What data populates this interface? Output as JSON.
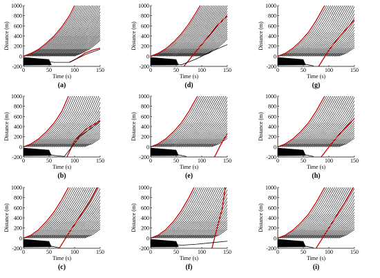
{
  "figure": {
    "panels_order": [
      "a",
      "d",
      "g",
      "b",
      "e",
      "h",
      "c",
      "f",
      "i"
    ]
  },
  "chart_data": [
    {
      "panel": "(a)",
      "type": "line",
      "xlabel": "Time (s)",
      "ylabel": "Distance (m)",
      "xlim": [
        0,
        150
      ],
      "ylim": [
        -200,
        1000
      ],
      "xticks": [
        0,
        50,
        100,
        150
      ],
      "yticks": [
        -200,
        0,
        200,
        400,
        600,
        800,
        1000
      ],
      "series": [
        {
          "color": "#cc0000",
          "values": [
            [
              0,
              0
            ],
            [
              15,
              60
            ],
            [
              30,
              140
            ],
            [
              45,
              260
            ],
            [
              60,
              400
            ],
            [
              75,
              580
            ],
            [
              90,
              800
            ],
            [
              100,
              1000
            ]
          ]
        },
        {
          "color": "#cc0000",
          "values": [
            [
              90,
              -120
            ],
            [
              105,
              -40
            ],
            [
              120,
              60
            ],
            [
              135,
              120
            ],
            [
              150,
              160
            ]
          ]
        },
        {
          "color": "#000000",
          "values": [
            [
              0,
              -60
            ],
            [
              30,
              -90
            ],
            [
              60,
              -120
            ],
            [
              90,
              -120
            ],
            [
              120,
              30
            ],
            [
              150,
              140
            ]
          ]
        }
      ]
    },
    {
      "panel": "(b)",
      "type": "line",
      "xlabel": "Time (s)",
      "ylabel": "Distance (m)",
      "xlim": [
        0,
        150
      ],
      "ylim": [
        -200,
        1000
      ],
      "xticks": [
        0,
        50,
        100,
        150
      ],
      "yticks": [
        -200,
        0,
        200,
        400,
        600,
        800,
        1000
      ],
      "series": [
        {
          "color": "#cc0000",
          "values": [
            [
              0,
              0
            ],
            [
              15,
              60
            ],
            [
              30,
              160
            ],
            [
              45,
              300
            ],
            [
              60,
              470
            ],
            [
              75,
              700
            ],
            [
              88,
              1000
            ]
          ]
        },
        {
          "color": "#cc0000",
          "values": [
            [
              85,
              -200
            ],
            [
              100,
              120
            ],
            [
              120,
              330
            ],
            [
              150,
              520
            ]
          ]
        },
        {
          "color": "#000000",
          "values": [
            [
              0,
              -40
            ],
            [
              30,
              -110
            ],
            [
              60,
              -170
            ],
            [
              80,
              -190
            ],
            [
              110,
              200
            ],
            [
              150,
              500
            ]
          ]
        }
      ]
    },
    {
      "panel": "(c)",
      "type": "line",
      "xlabel": "Time (s)",
      "ylabel": "Distance (m)",
      "xlim": [
        0,
        150
      ],
      "ylim": [
        -200,
        1000
      ],
      "xticks": [
        0,
        50,
        100,
        150
      ],
      "yticks": [
        -200,
        0,
        200,
        400,
        600,
        800,
        1000
      ],
      "series": [
        {
          "color": "#cc0000",
          "values": [
            [
              0,
              0
            ],
            [
              15,
              60
            ],
            [
              30,
              170
            ],
            [
              45,
              330
            ],
            [
              60,
              520
            ],
            [
              75,
              760
            ],
            [
              88,
              1000
            ]
          ]
        },
        {
          "color": "#cc0000",
          "values": [
            [
              70,
              -200
            ],
            [
              90,
              120
            ],
            [
              110,
              420
            ],
            [
              130,
              720
            ],
            [
              145,
              1000
            ]
          ]
        },
        {
          "color": "#000000",
          "values": [
            [
              0,
              -30
            ],
            [
              30,
              -100
            ],
            [
              55,
              -160
            ],
            [
              70,
              -190
            ]
          ]
        }
      ]
    },
    {
      "panel": "(d)",
      "type": "line",
      "xlabel": "Time (s)",
      "ylabel": "Distance (m)",
      "xlim": [
        0,
        150
      ],
      "ylim": [
        -200,
        1000
      ],
      "xticks": [
        0,
        50,
        100,
        150
      ],
      "yticks": [
        -200,
        0,
        200,
        400,
        600,
        800,
        1000
      ],
      "series": [
        {
          "color": "#cc0000",
          "values": [
            [
              0,
              0
            ],
            [
              15,
              60
            ],
            [
              30,
              150
            ],
            [
              45,
              280
            ],
            [
              60,
              440
            ],
            [
              75,
              640
            ],
            [
              90,
              880
            ],
            [
              97,
              1000
            ]
          ]
        },
        {
          "color": "#cc0000",
          "values": [
            [
              65,
              -200
            ],
            [
              85,
              50
            ],
            [
              110,
              350
            ],
            [
              130,
              600
            ],
            [
              150,
              800
            ]
          ]
        },
        {
          "color": "#000000",
          "values": [
            [
              0,
              -50
            ],
            [
              30,
              -110
            ],
            [
              60,
              -170
            ],
            [
              90,
              -50
            ],
            [
              120,
              100
            ],
            [
              150,
              230
            ]
          ]
        }
      ]
    },
    {
      "panel": "(e)",
      "type": "line",
      "xlabel": "Time (s)",
      "ylabel": "Distance (m)",
      "xlim": [
        0,
        150
      ],
      "ylim": [
        -200,
        1000
      ],
      "xticks": [
        0,
        50,
        100,
        150
      ],
      "yticks": [
        -200,
        0,
        200,
        400,
        600,
        800,
        1000
      ],
      "series": [
        {
          "color": "#cc0000",
          "values": [
            [
              0,
              0
            ],
            [
              15,
              60
            ],
            [
              30,
              160
            ],
            [
              45,
              300
            ],
            [
              60,
              470
            ],
            [
              75,
              700
            ],
            [
              90,
              970
            ],
            [
              92,
              1000
            ]
          ]
        },
        {
          "color": "#cc0000",
          "values": [
            [
              125,
              -200
            ],
            [
              135,
              0
            ],
            [
              145,
              180
            ],
            [
              150,
              260
            ]
          ]
        },
        {
          "color": "#000000",
          "values": [
            [
              0,
              -40
            ],
            [
              30,
              -110
            ],
            [
              60,
              -170
            ],
            [
              70,
              -190
            ]
          ]
        }
      ]
    },
    {
      "panel": "(f)",
      "type": "line",
      "xlabel": "Time (s)",
      "ylabel": "Distance (m)",
      "xlim": [
        0,
        150
      ],
      "ylim": [
        -200,
        1000
      ],
      "xticks": [
        0,
        50,
        100,
        150
      ],
      "yticks": [
        -200,
        0,
        200,
        400,
        600,
        800,
        1000
      ],
      "series": [
        {
          "color": "#cc0000",
          "values": [
            [
              0,
              0
            ],
            [
              15,
              60
            ],
            [
              30,
              170
            ],
            [
              45,
              330
            ],
            [
              60,
              540
            ],
            [
              75,
              800
            ],
            [
              85,
              1000
            ]
          ]
        },
        {
          "color": "#cc0000",
          "values": [
            [
              120,
              -200
            ],
            [
              130,
              200
            ],
            [
              140,
              580
            ],
            [
              146,
              1000
            ]
          ]
        },
        {
          "color": "#000000",
          "values": [
            [
              0,
              -40
            ],
            [
              30,
              -100
            ],
            [
              60,
              -140
            ],
            [
              90,
              -120
            ],
            [
              120,
              -90
            ],
            [
              150,
              -60
            ]
          ]
        }
      ]
    },
    {
      "panel": "(g)",
      "type": "line",
      "xlabel": "Time (s)",
      "ylabel": "Distance (m)",
      "xlim": [
        0,
        150
      ],
      "ylim": [
        -200,
        1000
      ],
      "xticks": [
        0,
        50,
        100,
        150
      ],
      "yticks": [
        -200,
        0,
        200,
        400,
        600,
        800,
        1000
      ],
      "series": [
        {
          "color": "#cc0000",
          "values": [
            [
              0,
              0
            ],
            [
              15,
              60
            ],
            [
              30,
              160
            ],
            [
              45,
              300
            ],
            [
              60,
              470
            ],
            [
              75,
              700
            ],
            [
              90,
              970
            ],
            [
              92,
              1000
            ]
          ]
        },
        {
          "color": "#cc0000",
          "values": [
            [
              80,
              -200
            ],
            [
              100,
              120
            ],
            [
              120,
              380
            ],
            [
              140,
              600
            ],
            [
              150,
              720
            ]
          ]
        },
        {
          "color": "#000000",
          "values": [
            [
              0,
              -40
            ],
            [
              30,
              -110
            ],
            [
              60,
              -170
            ],
            [
              70,
              -190
            ]
          ]
        }
      ]
    },
    {
      "panel": "(h)",
      "type": "line",
      "xlabel": "Time (s)",
      "ylabel": "Distance (m)",
      "xlim": [
        0,
        150
      ],
      "ylim": [
        -200,
        1000
      ],
      "xticks": [
        0,
        50,
        100,
        150
      ],
      "yticks": [
        -200,
        0,
        200,
        400,
        600,
        800,
        1000
      ],
      "series": [
        {
          "color": "#cc0000",
          "values": [
            [
              0,
              0
            ],
            [
              15,
              60
            ],
            [
              30,
              160
            ],
            [
              45,
              300
            ],
            [
              60,
              470
            ],
            [
              75,
              700
            ],
            [
              90,
              970
            ],
            [
              92,
              1000
            ]
          ]
        },
        {
          "color": "#cc0000",
          "values": [
            [
              85,
              -200
            ],
            [
              105,
              60
            ],
            [
              125,
              300
            ],
            [
              150,
              560
            ]
          ]
        },
        {
          "color": "#000000",
          "values": [
            [
              0,
              -40
            ],
            [
              30,
              -110
            ],
            [
              60,
              -170
            ],
            [
              70,
              -190
            ]
          ]
        }
      ]
    },
    {
      "panel": "(i)",
      "type": "line",
      "xlabel": "Time (s)",
      "ylabel": "Distance (m)",
      "xlim": [
        0,
        150
      ],
      "ylim": [
        -200,
        1000
      ],
      "xticks": [
        0,
        50,
        100,
        150
      ],
      "yticks": [
        -200,
        0,
        200,
        400,
        600,
        800,
        1000
      ],
      "series": [
        {
          "color": "#cc0000",
          "values": [
            [
              0,
              0
            ],
            [
              15,
              60
            ],
            [
              30,
              160
            ],
            [
              45,
              300
            ],
            [
              60,
              470
            ],
            [
              75,
              700
            ],
            [
              90,
              970
            ],
            [
              92,
              1000
            ]
          ]
        },
        {
          "color": "#cc0000",
          "values": [
            [
              75,
              -200
            ],
            [
              95,
              120
            ],
            [
              115,
              440
            ],
            [
              135,
              760
            ],
            [
              148,
              1000
            ]
          ]
        },
        {
          "color": "#000000",
          "values": [
            [
              0,
              -40
            ],
            [
              30,
              -110
            ],
            [
              60,
              -170
            ],
            [
              70,
              -190
            ]
          ]
        }
      ]
    }
  ]
}
